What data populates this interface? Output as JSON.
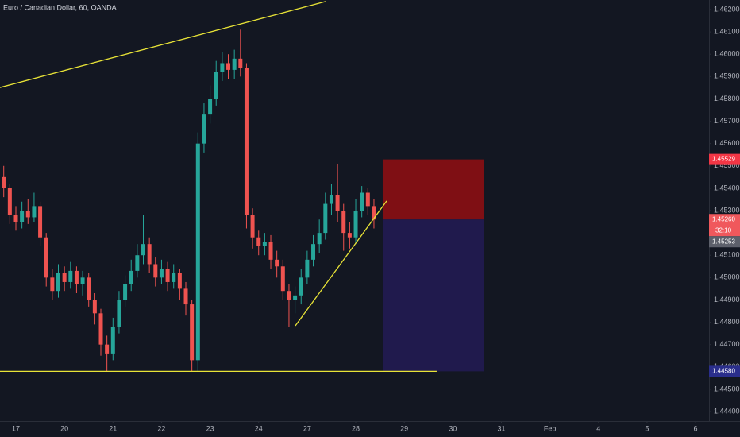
{
  "chart_data": {
    "type": "candlestick",
    "title": "Euro / Canadian Dollar, 60, OANDA",
    "up_color": "#26a69a",
    "down_color": "#ef5350",
    "grid": false,
    "ylim": [
      1.444,
      1.462
    ],
    "yticks": [
      {
        "value": 1.444,
        "label": "1.44400"
      },
      {
        "value": 1.445,
        "label": "1.44500"
      },
      {
        "value": 1.446,
        "label": "1.44600"
      },
      {
        "value": 1.447,
        "label": "1.44700"
      },
      {
        "value": 1.448,
        "label": "1.44800"
      },
      {
        "value": 1.449,
        "label": "1.44900"
      },
      {
        "value": 1.45,
        "label": "1.45000"
      },
      {
        "value": 1.451,
        "label": "1.45100"
      },
      {
        "value": 1.452,
        "label": "1.45200"
      },
      {
        "value": 1.453,
        "label": "1.45300"
      },
      {
        "value": 1.454,
        "label": "1.45400"
      },
      {
        "value": 1.455,
        "label": "1.45500"
      },
      {
        "value": 1.456,
        "label": "1.45600"
      },
      {
        "value": 1.457,
        "label": "1.45700"
      },
      {
        "value": 1.458,
        "label": "1.45800"
      },
      {
        "value": 1.459,
        "label": "1.45900"
      },
      {
        "value": 1.46,
        "label": "1.46000"
      },
      {
        "value": 1.461,
        "label": "1.46100"
      },
      {
        "value": 1.462,
        "label": "1.46200"
      }
    ],
    "xlim": [
      -0.327,
      14.277
    ],
    "xticks": [
      {
        "value": 0,
        "label": "17"
      },
      {
        "value": 1,
        "label": "20"
      },
      {
        "value": 2,
        "label": "21"
      },
      {
        "value": 3,
        "label": "22"
      },
      {
        "value": 4,
        "label": "23"
      },
      {
        "value": 5,
        "label": "24"
      },
      {
        "value": 6,
        "label": "27"
      },
      {
        "value": 7,
        "label": "28"
      },
      {
        "value": 8,
        "label": "29"
      },
      {
        "value": 9,
        "label": "30"
      },
      {
        "value": 10,
        "label": "31"
      },
      {
        "value": 11,
        "label": "Feb"
      },
      {
        "value": 12,
        "label": "4"
      },
      {
        "value": 13,
        "label": "5"
      },
      {
        "value": 14,
        "label": "6"
      }
    ],
    "candles": [
      [
        -0.25,
        1.4545,
        1.455,
        1.4536,
        1.454
      ],
      [
        -0.125,
        1.454,
        1.4542,
        1.4524,
        1.4528
      ],
      [
        0,
        1.4528,
        1.4532,
        1.4521,
        1.4525
      ],
      [
        0.125,
        1.4525,
        1.4534,
        1.4522,
        1.453
      ],
      [
        0.25,
        1.453,
        1.4535,
        1.4524,
        1.4527
      ],
      [
        0.375,
        1.4527,
        1.4538,
        1.4525,
        1.4532
      ],
      [
        0.5,
        1.4532,
        1.4534,
        1.4514,
        1.4518
      ],
      [
        0.625,
        1.4518,
        1.452,
        1.4496,
        1.45
      ],
      [
        0.75,
        1.45,
        1.4504,
        1.449,
        1.4494
      ],
      [
        0.875,
        1.4494,
        1.4506,
        1.4491,
        1.4502
      ],
      [
        1,
        1.4502,
        1.4505,
        1.4494,
        1.4498
      ],
      [
        1.125,
        1.4498,
        1.4507,
        1.4495,
        1.4503
      ],
      [
        1.25,
        1.4503,
        1.4505,
        1.4493,
        1.4497
      ],
      [
        1.375,
        1.4497,
        1.4503,
        1.4492,
        1.45
      ],
      [
        1.5,
        1.45,
        1.4502,
        1.4487,
        1.449
      ],
      [
        1.625,
        1.449,
        1.4493,
        1.4479,
        1.4484
      ],
      [
        1.75,
        1.4484,
        1.4486,
        1.4465,
        1.447
      ],
      [
        1.875,
        1.447,
        1.4474,
        1.4458,
        1.4466
      ],
      [
        2,
        1.4466,
        1.4482,
        1.4463,
        1.4478
      ],
      [
        2.125,
        1.4478,
        1.4494,
        1.4475,
        1.449
      ],
      [
        2.25,
        1.449,
        1.4501,
        1.4487,
        1.4497
      ],
      [
        2.375,
        1.4497,
        1.4508,
        1.4494,
        1.4503
      ],
      [
        2.5,
        1.4503,
        1.4515,
        1.45,
        1.451
      ],
      [
        2.625,
        1.451,
        1.4528,
        1.4506,
        1.4515
      ],
      [
        2.75,
        1.4515,
        1.4518,
        1.4502,
        1.4506
      ],
      [
        2.875,
        1.4506,
        1.4509,
        1.4496,
        1.45
      ],
      [
        3,
        1.45,
        1.4508,
        1.4497,
        1.4504
      ],
      [
        3.125,
        1.4504,
        1.4507,
        1.4494,
        1.4498
      ],
      [
        3.25,
        1.4498,
        1.4506,
        1.4495,
        1.4502
      ],
      [
        3.375,
        1.4502,
        1.4504,
        1.449,
        1.4495
      ],
      [
        3.5,
        1.4495,
        1.4498,
        1.4483,
        1.4488
      ],
      [
        3.625,
        1.4488,
        1.449,
        1.4458,
        1.4463
      ],
      [
        3.75,
        1.4463,
        1.4565,
        1.4458,
        1.456
      ],
      [
        3.875,
        1.456,
        1.4578,
        1.4556,
        1.4573
      ],
      [
        4,
        1.4573,
        1.4586,
        1.4569,
        1.458
      ],
      [
        4.125,
        1.458,
        1.4597,
        1.4577,
        1.4592
      ],
      [
        4.25,
        1.4592,
        1.4601,
        1.4588,
        1.4596
      ],
      [
        4.375,
        1.4596,
        1.46,
        1.4589,
        1.4593
      ],
      [
        4.5,
        1.4593,
        1.4602,
        1.4589,
        1.4598
      ],
      [
        4.625,
        1.4598,
        1.4611,
        1.459,
        1.4594
      ],
      [
        4.75,
        1.4594,
        1.4596,
        1.4522,
        1.4528
      ],
      [
        4.875,
        1.4528,
        1.4531,
        1.4513,
        1.4518
      ],
      [
        5,
        1.4518,
        1.4521,
        1.451,
        1.4514
      ],
      [
        5.125,
        1.4514,
        1.452,
        1.451,
        1.4516
      ],
      [
        5.25,
        1.4516,
        1.4519,
        1.4504,
        1.4508
      ],
      [
        5.375,
        1.4508,
        1.4512,
        1.45,
        1.4505
      ],
      [
        5.5,
        1.4505,
        1.4508,
        1.449,
        1.4494
      ],
      [
        5.625,
        1.4494,
        1.4497,
        1.4478,
        1.449
      ],
      [
        5.75,
        1.449,
        1.4496,
        1.4484,
        1.4492
      ],
      [
        5.875,
        1.4492,
        1.4504,
        1.4488,
        1.45
      ],
      [
        6,
        1.45,
        1.4512,
        1.4497,
        1.4508
      ],
      [
        6.125,
        1.4508,
        1.4519,
        1.4505,
        1.4515
      ],
      [
        6.25,
        1.4515,
        1.4526,
        1.4511,
        1.452
      ],
      [
        6.375,
        1.452,
        1.4538,
        1.4517,
        1.4533
      ],
      [
        6.5,
        1.4533,
        1.4542,
        1.4528,
        1.4537
      ],
      [
        6.625,
        1.4537,
        1.4551,
        1.4525,
        1.453
      ],
      [
        6.75,
        1.453,
        1.4533,
        1.4512,
        1.452
      ],
      [
        6.875,
        1.452,
        1.4525,
        1.4513,
        1.4518
      ],
      [
        7,
        1.4518,
        1.4535,
        1.4515,
        1.453
      ],
      [
        7.125,
        1.453,
        1.4541,
        1.4527,
        1.4538
      ],
      [
        7.25,
        1.4538,
        1.454,
        1.4528,
        1.4532
      ],
      [
        7.375,
        1.4532,
        1.4535,
        1.4522,
        1.4526
      ]
    ],
    "drawings": [
      {
        "color": "#e8e337",
        "x": [
          -0.327,
          6.378
        ],
        "y": [
          1.45851,
          1.46236
        ]
      },
      {
        "color": "#e8e337",
        "x": [
          -0.327,
          8.667
        ],
        "y": [
          1.4458,
          1.4458
        ]
      },
      {
        "color": "#e8e337",
        "x": [
          5.756,
          7.637
        ],
        "y": [
          1.44784,
          1.45343
        ]
      }
    ],
    "position": {
      "x": [
        7.555,
        9.648
      ],
      "stop": 1.45529,
      "entry": 1.4526,
      "target": 1.4458,
      "risk_color": "#7f0f14",
      "reward_color": "#201a4d"
    },
    "price_tags": [
      {
        "value": 1.45529,
        "label": "1.45529",
        "color": "#f23645"
      },
      {
        "value": 1.4526,
        "label": "1.45260",
        "timer": "32:10",
        "color": "#f0585c"
      },
      {
        "value": 1.45253,
        "label": "1.45253",
        "color": "#5d606b"
      },
      {
        "value": 1.4458,
        "label": "1.44580",
        "color": "#2a2e8c"
      }
    ]
  }
}
